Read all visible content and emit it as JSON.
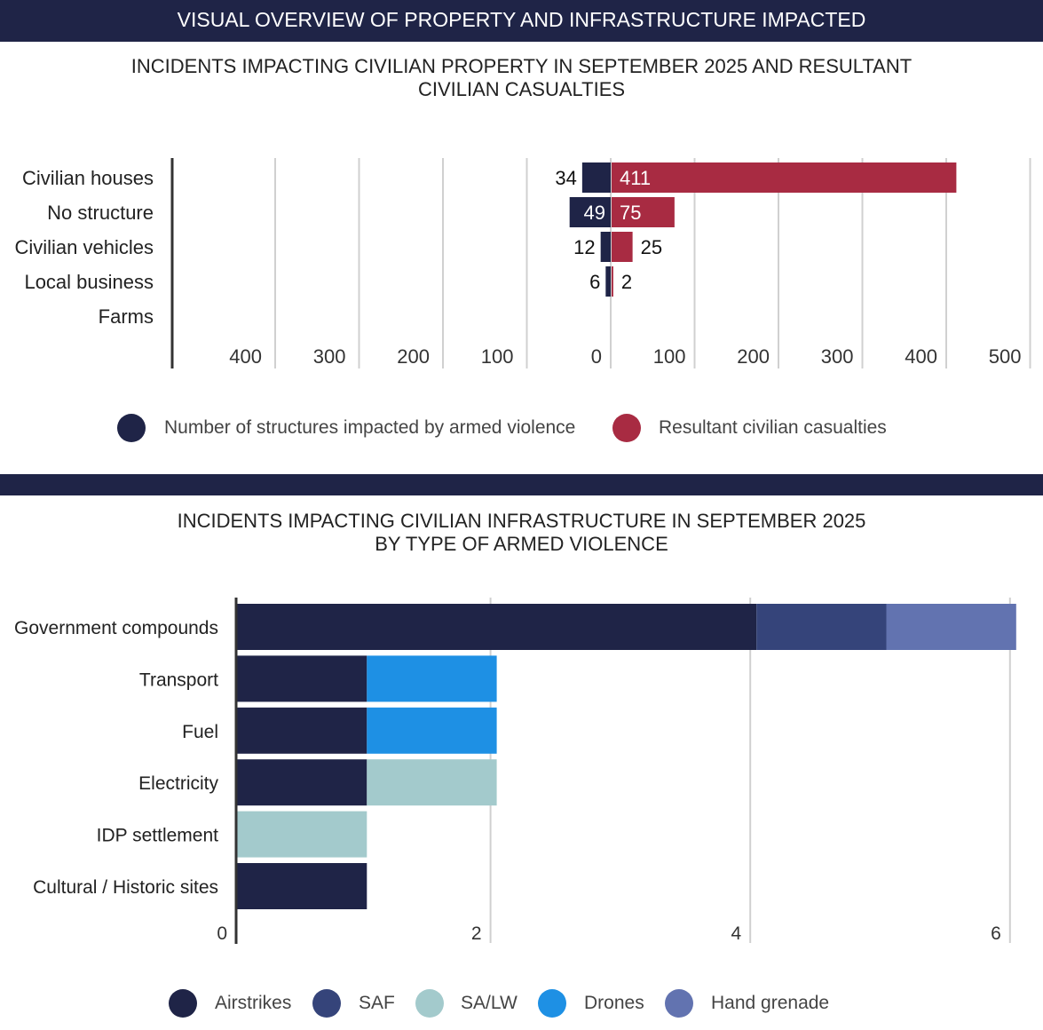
{
  "header": "VISUAL OVERVIEW OF PROPERTY AND INFRASTRUCTURE IMPACTED",
  "chart_data": [
    {
      "type": "bar",
      "orientation": "horizontal-diverging",
      "title_line1": "INCIDENTS IMPACTING CIVILIAN PROPERTY IN SEPTEMBER 2025 AND RESULTANT",
      "title_line2": "CIVILIAN CASUALTIES",
      "categories": [
        "Civilian houses",
        "No structure",
        "Civilian vehicles",
        "Local business",
        "Farms"
      ],
      "series": [
        {
          "name": "Number of structures impacted by armed violence",
          "color": "#1f2447",
          "values": [
            34,
            49,
            12,
            6,
            null
          ],
          "labels": [
            "34",
            "49",
            "12",
            "6",
            ""
          ]
        },
        {
          "name": "Resultant civilian casualties",
          "color": "#a82b42",
          "values": [
            411,
            75,
            25,
            2,
            null
          ],
          "labels": [
            "411",
            "75",
            "25",
            "2",
            ""
          ]
        }
      ],
      "left_ticks": [
        "400",
        "300",
        "200",
        "100",
        "0"
      ],
      "right_ticks": [
        "100",
        "200",
        "300",
        "400",
        "500"
      ],
      "xlim": [
        -500,
        500
      ],
      "legend_position": "bottom"
    },
    {
      "type": "bar",
      "orientation": "horizontal-stacked",
      "title_line1": "INCIDENTS IMPACTING CIVILIAN INFRASTRUCTURE IN SEPTEMBER 2025",
      "title_line2": "BY TYPE OF ARMED VIOLENCE",
      "categories": [
        "Government compounds",
        "Transport",
        "Fuel",
        "Electricity",
        "IDP settlement",
        "Cultural / Historic sites"
      ],
      "series": [
        {
          "name": "Airstrikes",
          "color": "#1f2447",
          "values": [
            4,
            1,
            1,
            1,
            0,
            1
          ]
        },
        {
          "name": "SAF",
          "color": "#35447a",
          "values": [
            1,
            0,
            0,
            0,
            0,
            0
          ]
        },
        {
          "name": "SA/LW",
          "color": "#a3cacc",
          "values": [
            0,
            0,
            0,
            1,
            1,
            0
          ]
        },
        {
          "name": "Drones",
          "color": "#1e90e4",
          "values": [
            0,
            1,
            1,
            0,
            0,
            0
          ]
        },
        {
          "name": "Hand grenade",
          "color": "#6273b0",
          "values": [
            1,
            0,
            0,
            0,
            0,
            0
          ]
        }
      ],
      "ticks": [
        "0",
        "2",
        "4",
        "6"
      ],
      "xlim": [
        0,
        6
      ],
      "legend_position": "bottom"
    }
  ]
}
